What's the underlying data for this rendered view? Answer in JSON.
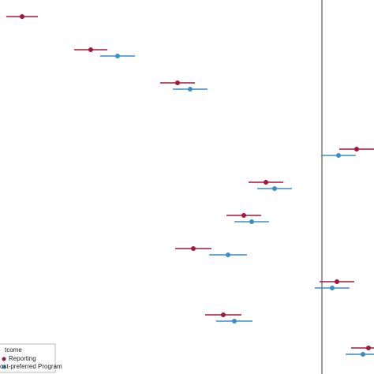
{
  "chart_data": {
    "type": "dot-whisker",
    "categories": [
      null,
      null,
      null,
      null,
      null,
      null,
      null,
      null,
      null,
      null,
      null
    ],
    "xlim": [
      -4.08,
      0.66
    ],
    "refline": 0,
    "legend_title": "tcome",
    "legend": "lower left",
    "series": [
      {
        "name": "Reporting",
        "color": "#a3173a",
        "values": [
          -3.8,
          -2.93,
          -1.83,
          null,
          0.44,
          -0.71,
          -0.99,
          -1.63,
          0.19,
          -1.25,
          0.59
        ],
        "errors": [
          0.2,
          0.21,
          0.22,
          null,
          0.22,
          0.22,
          0.22,
          0.23,
          0.22,
          0.23,
          0.22
        ]
      },
      {
        "name": "ost-preferred Program",
        "color": "#3a8fc2",
        "values": [
          null,
          -2.59,
          -1.67,
          null,
          0.21,
          -0.6,
          -0.89,
          -1.19,
          0.13,
          -1.11,
          0.52
        ],
        "errors": [
          null,
          0.22,
          0.22,
          null,
          0.22,
          0.22,
          0.22,
          0.24,
          0.22,
          0.23,
          0.22
        ]
      }
    ]
  }
}
